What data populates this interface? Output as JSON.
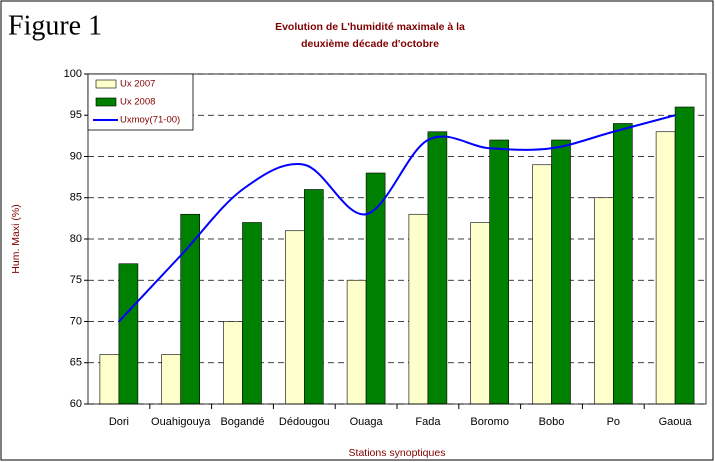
{
  "chart_data": {
    "type": "bar_line",
    "figure_label": "Figure 1",
    "title": [
      "Evolution de L'humidité maximale  à la",
      "deuxième décade d'octobre"
    ],
    "y_label": "Hum. Maxi (%)",
    "x_label": "Stations synoptiques",
    "categories": [
      "Dori",
      "Ouahigouya",
      "Bogandé",
      "Dédougou",
      "Ouaga",
      "Fada",
      "Boromo",
      "Bobo",
      "Po",
      "Gaoua"
    ],
    "series": [
      {
        "name": "Ux 2007",
        "type": "bar",
        "color": "#ffffcc",
        "values": [
          66,
          66,
          70,
          81,
          75,
          83,
          82,
          89,
          85,
          93
        ]
      },
      {
        "name": "Ux 2008",
        "type": "bar",
        "color": "#008000",
        "values": [
          77,
          83,
          82,
          86,
          88,
          93,
          92,
          92,
          94,
          96
        ]
      },
      {
        "name": "Uxmoy(71-00)",
        "type": "line",
        "color": "#0000ff",
        "values": [
          70,
          78,
          86,
          89,
          83,
          92,
          91,
          91,
          93,
          95
        ]
      }
    ],
    "ylim": [
      60,
      100
    ],
    "yticks": [
      60,
      65,
      70,
      75,
      80,
      85,
      90,
      95,
      100
    ],
    "grid": true,
    "legend": "upper left"
  }
}
